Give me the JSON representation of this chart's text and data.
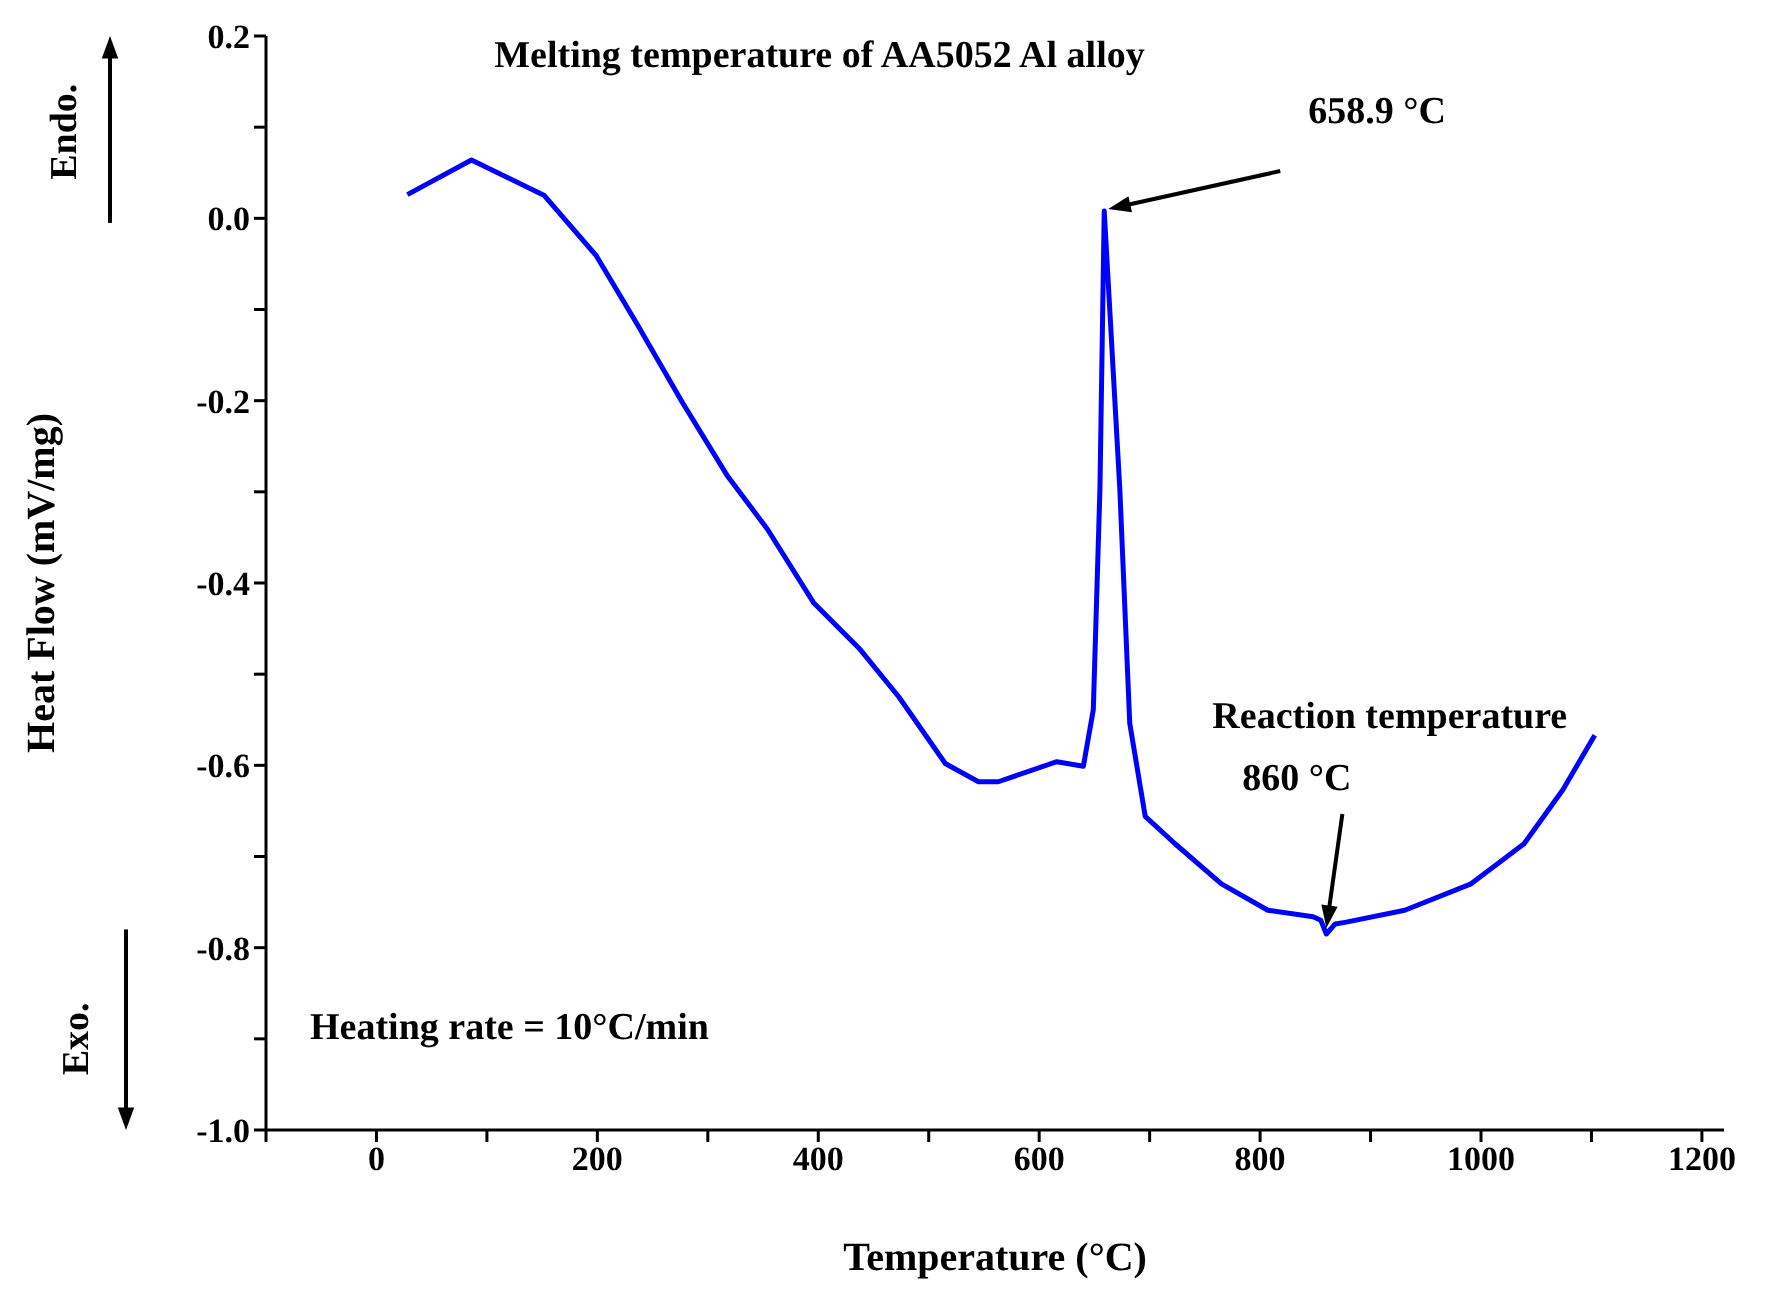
{
  "chart_data": {
    "type": "line",
    "xlabel": "Temperature (°C)",
    "ylabel": "Heat Flow (mV/mg)",
    "x": [
      28,
      86,
      152,
      199,
      235,
      277,
      318,
      354,
      396,
      438,
      473,
      515,
      545,
      563,
      616,
      640,
      649,
      655,
      658.9,
      673,
      682,
      696,
      723,
      765,
      807,
      848,
      855,
      860,
      868,
      878,
      931,
      991,
      1039,
      1074,
      1103
    ],
    "series": [
      {
        "color": "#0000ff",
        "values": [
          0.026,
          0.064,
          0.025,
          -0.041,
          -0.114,
          -0.202,
          -0.283,
          -0.341,
          -0.422,
          -0.473,
          -0.525,
          -0.598,
          -0.618,
          -0.618,
          -0.596,
          -0.601,
          -0.539,
          -0.297,
          0.008,
          -0.297,
          -0.554,
          -0.656,
          -0.686,
          -0.73,
          -0.759,
          -0.766,
          -0.77,
          -0.785,
          -0.774,
          -0.772,
          -0.759,
          -0.73,
          -0.686,
          -0.627,
          -0.567
        ]
      }
    ],
    "xlim": [
      -100,
      1220
    ],
    "xticks": [
      {
        "value": -100,
        "label": null
      },
      0,
      {
        "value": 100,
        "label": null
      },
      200,
      {
        "value": 300,
        "label": null
      },
      400,
      {
        "value": 500,
        "label": null
      },
      600,
      {
        "value": 700,
        "label": null
      },
      800,
      {
        "value": 900,
        "label": null
      },
      1000,
      {
        "value": 1100,
        "label": null
      },
      1200
    ],
    "ylim": [
      -1.0,
      0.2
    ],
    "yticks": [
      {
        "value": -1.0,
        "label": "-1.0"
      },
      {
        "value": -0.9,
        "label": null
      },
      {
        "value": -0.8,
        "label": "-0.8"
      },
      {
        "value": -0.7,
        "label": null
      },
      {
        "value": -0.6,
        "label": "-0.6"
      },
      {
        "value": -0.5,
        "label": null
      },
      {
        "value": -0.4,
        "label": "-0.4"
      },
      {
        "value": -0.3,
        "label": null
      },
      {
        "value": -0.2,
        "label": "-0.2"
      },
      {
        "value": -0.1,
        "label": null
      },
      {
        "value": 0.0,
        "label": "0.0"
      },
      {
        "value": 0.1,
        "label": null
      },
      {
        "value": 0.2,
        "label": "0.2"
      }
    ],
    "grid": false,
    "marker": "none",
    "line_style": "solid",
    "annotations": [
      "Melting temperature of AA5052 Al alloy",
      {
        "text": "658.9 °C",
        "x": 658.9,
        "y": 0.008
      },
      "Reaction temperature",
      {
        "text": "860 °C",
        "x": 860,
        "y": -0.785
      },
      "Heating rate = 10°C/min",
      "Endo.",
      "Exo."
    ]
  }
}
